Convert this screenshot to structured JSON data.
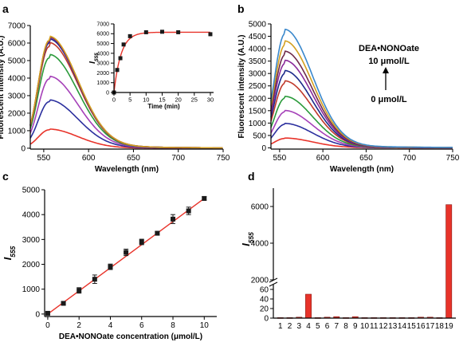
{
  "colors": {
    "axis": "#000000",
    "marker": "#1a1a1a",
    "fit": "#e8332a",
    "bar": "#e8332a",
    "spectra": [
      "#e8332a",
      "#2b2f9e",
      "#a540b8",
      "#2a9a3a",
      "#c0392b",
      "#1b2a8a",
      "#8a2a9a",
      "#6e2a4a",
      "#d4a020",
      "#3a88cc"
    ]
  },
  "panels": {
    "a": "a",
    "b": "b",
    "c": "c",
    "d": "d"
  },
  "chart_data": [
    {
      "id": "a-main",
      "type": "line",
      "xlabel": "Wavelength (nm)",
      "ylabel": "Fluorescent intensity (A.U.)",
      "xlim": [
        535,
        750
      ],
      "ylim": [
        -50,
        7000
      ],
      "xticks": [
        550,
        600,
        650,
        700,
        750
      ],
      "yticks": [
        0,
        1000,
        2000,
        3000,
        4000,
        5000,
        6000,
        7000
      ],
      "peak_x": 556,
      "series_peaks": [
        1050,
        2650,
        3950,
        5150,
        5800,
        6000,
        6080,
        6120,
        6150
      ]
    },
    {
      "id": "a-inset",
      "type": "scatter",
      "xlabel": "Time (min)",
      "ylabel": "I",
      "ylabel_sub": "555",
      "xlim": [
        0,
        31
      ],
      "ylim": [
        0,
        7000
      ],
      "xticks": [
        0,
        5,
        10,
        15,
        20,
        25,
        30
      ],
      "yticks": [
        0,
        1000,
        2000,
        3000,
        4000,
        5000,
        6000,
        7000
      ],
      "x": [
        0,
        1,
        2,
        3,
        5,
        10,
        15,
        20,
        30
      ],
      "y": [
        0,
        2300,
        3500,
        4900,
        5750,
        6150,
        6200,
        6150,
        5950
      ]
    },
    {
      "id": "b-main",
      "type": "line",
      "xlabel": "Wavelength (nm)",
      "ylabel": "Fluorescent intensity (A.U.)",
      "xlim": [
        540,
        750
      ],
      "ylim": [
        -50,
        5000
      ],
      "xticks": [
        550,
        600,
        650,
        700,
        750
      ],
      "yticks": [
        0,
        500,
        1000,
        1500,
        2000,
        2500,
        3000,
        3500,
        4000,
        4500,
        5000
      ],
      "peak_x": 556,
      "series_peaks": [
        380,
        950,
        1450,
        2000,
        2600,
        3000,
        3400,
        3750,
        4150,
        4600
      ],
      "annotation_title": "DEA•NONOate",
      "annotation_top": "10 μmol/L",
      "annotation_bottom": "0 μmol/L"
    },
    {
      "id": "c-main",
      "type": "scatter",
      "xlabel": "DEA•NONOate concentration (μmol/L)",
      "ylabel": "I",
      "ylabel_sub": "555",
      "xlim": [
        -0.2,
        10.8
      ],
      "ylim": [
        -100,
        5000
      ],
      "xticks": [
        0,
        2,
        4,
        6,
        8,
        10
      ],
      "yticks": [
        0,
        1000,
        2000,
        3000,
        4000,
        5000
      ],
      "x": [
        0,
        1,
        2,
        3,
        4,
        5,
        6,
        7,
        8,
        9,
        10
      ],
      "y": [
        30,
        430,
        950,
        1400,
        1900,
        2480,
        2900,
        3250,
        3820,
        4150,
        4650
      ],
      "err": [
        40,
        60,
        110,
        170,
        110,
        130,
        110,
        70,
        180,
        150,
        70
      ],
      "fit": [
        [
          0,
          0
        ],
        [
          10,
          4650
        ]
      ]
    },
    {
      "id": "d-main",
      "type": "bar",
      "ylabel": "I",
      "ylabel_sub": "555",
      "categories": [
        "1",
        "2",
        "3",
        "4",
        "5",
        "6",
        "7",
        "8",
        "9",
        "10",
        "11",
        "12",
        "13",
        "14",
        "15",
        "16",
        "17",
        "18",
        "19"
      ],
      "values": [
        1,
        1,
        2,
        50,
        1,
        2,
        3,
        1,
        3,
        1,
        1,
        1,
        1,
        1,
        1,
        2,
        2,
        1,
        6100
      ],
      "broken_axis": true,
      "lower_range": [
        0,
        70
      ],
      "lower_ticks": [
        0,
        20,
        40,
        60
      ],
      "upper_range": [
        2000,
        7000
      ],
      "upper_ticks": [
        2000,
        4000,
        6000
      ]
    }
  ]
}
